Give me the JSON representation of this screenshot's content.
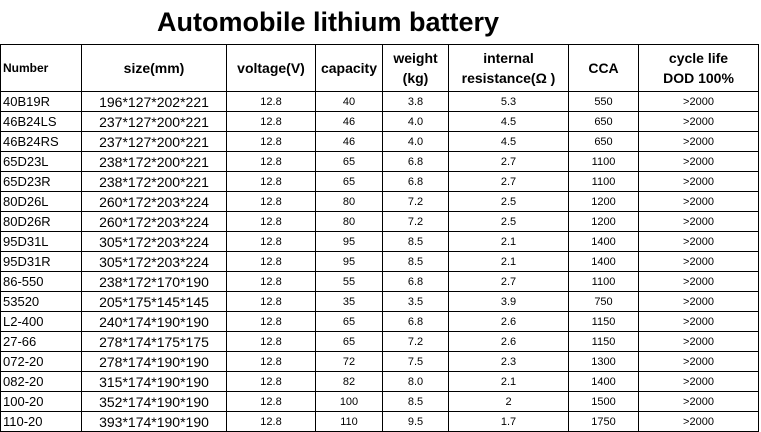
{
  "title": "Automobile lithium battery",
  "headers": {
    "number": "Number",
    "size": "size(mm)",
    "voltage": "voltage(V)",
    "capacity": "capacity",
    "weight_1": "weight",
    "weight_2": "(kg)",
    "resistance_1": "internal",
    "resistance_2": "resistance(Ω )",
    "cca": "CCA",
    "cycle_1": "cycle life",
    "cycle_2": "DOD 100%"
  },
  "rows": [
    {
      "number": "40B19R",
      "size": "196*127*202*221",
      "voltage": "12.8",
      "capacity": "40",
      "weight": "3.8",
      "resistance": "5.3",
      "cca": "550",
      "cycle": ">2000"
    },
    {
      "number": "46B24LS",
      "size": "237*127*200*221",
      "voltage": "12.8",
      "capacity": "46",
      "weight": "4.0",
      "resistance": "4.5",
      "cca": "650",
      "cycle": ">2000"
    },
    {
      "number": "46B24RS",
      "size": "237*127*200*221",
      "voltage": "12.8",
      "capacity": "46",
      "weight": "4.0",
      "resistance": "4.5",
      "cca": "650",
      "cycle": ">2000"
    },
    {
      "number": "65D23L",
      "size": "238*172*200*221",
      "voltage": "12.8",
      "capacity": "65",
      "weight": "6.8",
      "resistance": "2.7",
      "cca": "1100",
      "cycle": ">2000"
    },
    {
      "number": "65D23R",
      "size": "238*172*200*221",
      "voltage": "12.8",
      "capacity": "65",
      "weight": "6.8",
      "resistance": "2.7",
      "cca": "1100",
      "cycle": ">2000"
    },
    {
      "number": "80D26L",
      "size": "260*172*203*224",
      "voltage": "12.8",
      "capacity": "80",
      "weight": "7.2",
      "resistance": "2.5",
      "cca": "1200",
      "cycle": ">2000"
    },
    {
      "number": "80D26R",
      "size": "260*172*203*224",
      "voltage": "12.8",
      "capacity": "80",
      "weight": "7.2",
      "resistance": "2.5",
      "cca": "1200",
      "cycle": ">2000"
    },
    {
      "number": "95D31L",
      "size": "305*172*203*224",
      "voltage": "12.8",
      "capacity": "95",
      "weight": "8.5",
      "resistance": "2.1",
      "cca": "1400",
      "cycle": ">2000"
    },
    {
      "number": "95D31R",
      "size": "305*172*203*224",
      "voltage": "12.8",
      "capacity": "95",
      "weight": "8.5",
      "resistance": "2.1",
      "cca": "1400",
      "cycle": ">2000"
    },
    {
      "number": "86-550",
      "size": "238*172*170*190",
      "voltage": "12.8",
      "capacity": "55",
      "weight": "6.8",
      "resistance": "2.7",
      "cca": "1100",
      "cycle": ">2000"
    },
    {
      "number": "53520",
      "size": "205*175*145*145",
      "voltage": "12.8",
      "capacity": "35",
      "weight": "3.5",
      "resistance": "3.9",
      "cca": "750",
      "cycle": ">2000"
    },
    {
      "number": "L2-400",
      "size": "240*174*190*190",
      "voltage": "12.8",
      "capacity": "65",
      "weight": "6.8",
      "resistance": "2.6",
      "cca": "1150",
      "cycle": ">2000"
    },
    {
      "number": "27-66",
      "size": "278*174*175*175",
      "voltage": "12.8",
      "capacity": "65",
      "weight": "7.2",
      "resistance": "2.6",
      "cca": "1150",
      "cycle": ">2000"
    },
    {
      "number": "072-20",
      "size": "278*174*190*190",
      "voltage": "12.8",
      "capacity": "72",
      "weight": "7.5",
      "resistance": "2.3",
      "cca": "1300",
      "cycle": ">2000"
    },
    {
      "number": "082-20",
      "size": "315*174*190*190",
      "voltage": "12.8",
      "capacity": "82",
      "weight": "8.0",
      "resistance": "2.1",
      "cca": "1400",
      "cycle": ">2000"
    },
    {
      "number": "100-20",
      "size": "352*174*190*190",
      "voltage": "12.8",
      "capacity": "100",
      "weight": "8.5",
      "resistance": "2",
      "cca": "1500",
      "cycle": ">2000"
    },
    {
      "number": "110-20",
      "size": "393*174*190*190",
      "voltage": "12.8",
      "capacity": "110",
      "weight": "9.5",
      "resistance": "1.7",
      "cca": "1750",
      "cycle": ">2000"
    }
  ]
}
